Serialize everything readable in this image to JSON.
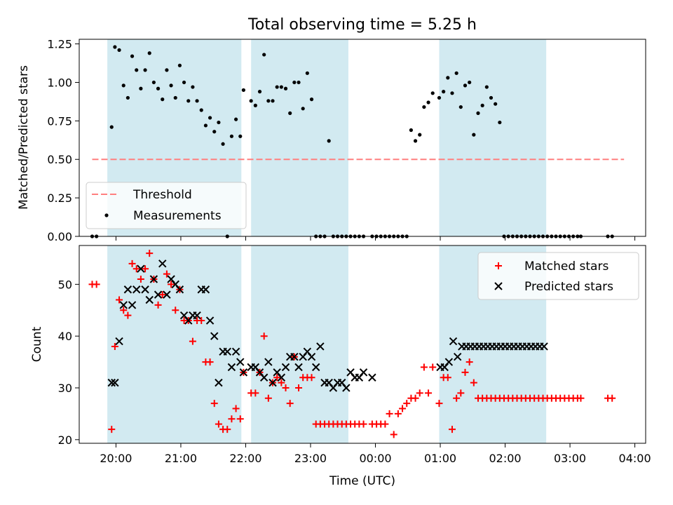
{
  "figure": {
    "title": "Total observing time = 5.25 h",
    "xlabel": "Time (UTC)",
    "xticks": [
      "20:00",
      "21:00",
      "22:00",
      "23:00",
      "00:00",
      "01:00",
      "02:00",
      "03:00",
      "04:00"
    ]
  },
  "colors": {
    "band": "#add8e6",
    "matched": "#ff0000",
    "predicted": "#000000",
    "threshold": "#ff7f7f"
  },
  "chart_data": [
    {
      "type": "scatter",
      "ylabel": "Matched/Predicted stars",
      "xlim": [
        "19:26",
        "04:10"
      ],
      "ylim": [
        0,
        1.28
      ],
      "yticks": [
        "0.00",
        "0.25",
        "0.50",
        "0.75",
        "1.00",
        "1.25"
      ],
      "grid": false,
      "legend_position": "lower-left",
      "observing_windows": [
        [
          "19:52",
          "21:56"
        ],
        [
          "22:05",
          "23:35"
        ],
        [
          "00:59",
          "02:38"
        ]
      ],
      "threshold": {
        "name": "Threshold",
        "value": 0.5,
        "x": [
          "19:38",
          "03:50"
        ]
      },
      "series": [
        {
          "name": "Measurements",
          "x": [
            "19:38",
            "19:42",
            "19:56",
            "19:59",
            "20:03",
            "20:07",
            "20:11",
            "20:15",
            "20:19",
            "20:23",
            "20:27",
            "20:31",
            "20:35",
            "20:39",
            "20:43",
            "20:47",
            "20:51",
            "20:55",
            "20:59",
            "21:03",
            "21:07",
            "21:11",
            "21:15",
            "21:19",
            "21:23",
            "21:27",
            "21:31",
            "21:35",
            "21:39",
            "21:43",
            "21:47",
            "21:51",
            "21:55",
            "21:58",
            "22:05",
            "22:09",
            "22:13",
            "22:17",
            "22:21",
            "22:25",
            "22:29",
            "22:33",
            "22:37",
            "22:41",
            "22:45",
            "22:49",
            "22:53",
            "22:57",
            "23:01",
            "23:05",
            "23:09",
            "23:13",
            "23:17",
            "23:21",
            "23:25",
            "23:29",
            "23:33",
            "23:37",
            "23:41",
            "23:45",
            "23:49",
            "23:57",
            "00:01",
            "00:05",
            "00:09",
            "00:13",
            "00:17",
            "00:21",
            "00:25",
            "00:29",
            "00:33",
            "00:37",
            "00:41",
            "00:45",
            "00:49",
            "00:53",
            "00:59",
            "01:03",
            "01:07",
            "01:11",
            "01:15",
            "01:19",
            "01:23",
            "01:27",
            "01:31",
            "01:35",
            "01:39",
            "01:43",
            "01:47",
            "01:51",
            "01:55",
            "01:59",
            "02:03",
            "02:07",
            "02:11",
            "02:15",
            "02:19",
            "02:23",
            "02:27",
            "02:31",
            "02:35",
            "02:39",
            "02:43",
            "02:47",
            "02:51",
            "02:55",
            "02:59",
            "03:03",
            "03:07",
            "03:10",
            "03:35",
            "03:39"
          ],
          "y": [
            0,
            0,
            0.71,
            1.23,
            1.21,
            0.98,
            0.9,
            1.17,
            1.08,
            0.96,
            1.08,
            1.19,
            1.0,
            0.96,
            0.89,
            1.08,
            0.98,
            0.9,
            1.11,
            1.0,
            0.88,
            0.97,
            0.88,
            0.82,
            0.72,
            0.77,
            0.68,
            0.74,
            0.6,
            0,
            0.65,
            0.76,
            0.65,
            0.95,
            0.88,
            0.85,
            0.94,
            1.18,
            0.88,
            0.88,
            0.97,
            0.97,
            0.96,
            0.8,
            1.0,
            1.0,
            0.83,
            1.06,
            0.89,
            0,
            0,
            0,
            0.62,
            0,
            0,
            0,
            0,
            0,
            0,
            0,
            0,
            0,
            0,
            0,
            0,
            0,
            0,
            0,
            0,
            0,
            0.69,
            0.62,
            0.66,
            0.84,
            0.87,
            0.93,
            0.9,
            0.94,
            1.03,
            0.93,
            1.06,
            0.84,
            0.98,
            1.0,
            0.66,
            0.8,
            0.85,
            0.97,
            0.9,
            0.86,
            0.74,
            0,
            0,
            0,
            0,
            0,
            0,
            0,
            0,
            0,
            0,
            0,
            0,
            0,
            0,
            0,
            0,
            0,
            0,
            0,
            0,
            0
          ]
        }
      ]
    },
    {
      "type": "scatter",
      "ylabel": "Count",
      "xlim": [
        "19:26",
        "04:10"
      ],
      "ylim": [
        19.3,
        57.5
      ],
      "yticks": [
        "20",
        "30",
        "40",
        "50"
      ],
      "grid": false,
      "legend_position": "top-right",
      "observing_windows": [
        [
          "19:52",
          "21:56"
        ],
        [
          "22:05",
          "23:35"
        ],
        [
          "00:59",
          "02:38"
        ]
      ],
      "series": [
        {
          "name": "Matched stars",
          "x": [
            "19:38",
            "19:42",
            "19:56",
            "19:59",
            "20:03",
            "20:07",
            "20:11",
            "20:15",
            "20:19",
            "20:23",
            "20:27",
            "20:31",
            "20:35",
            "20:39",
            "20:43",
            "20:47",
            "20:51",
            "20:55",
            "20:59",
            "21:03",
            "21:07",
            "21:11",
            "21:15",
            "21:19",
            "21:23",
            "21:27",
            "21:31",
            "21:35",
            "21:39",
            "21:43",
            "21:47",
            "21:51",
            "21:55",
            "21:58",
            "22:05",
            "22:09",
            "22:13",
            "22:17",
            "22:21",
            "22:25",
            "22:29",
            "22:33",
            "22:37",
            "22:41",
            "22:45",
            "22:49",
            "22:53",
            "22:57",
            "23:01",
            "23:05",
            "23:09",
            "23:13",
            "23:17",
            "23:21",
            "23:25",
            "23:29",
            "23:33",
            "23:37",
            "23:41",
            "23:45",
            "23:49",
            "23:57",
            "00:01",
            "00:05",
            "00:09",
            "00:13",
            "00:17",
            "00:21",
            "00:25",
            "00:29",
            "00:33",
            "00:37",
            "00:41",
            "00:45",
            "00:49",
            "00:53",
            "00:59",
            "01:03",
            "01:07",
            "01:11",
            "01:15",
            "01:19",
            "01:23",
            "01:27",
            "01:31",
            "01:35",
            "01:39",
            "01:43",
            "01:47",
            "01:51",
            "01:55",
            "01:59",
            "02:03",
            "02:07",
            "02:11",
            "02:15",
            "02:19",
            "02:23",
            "02:27",
            "02:31",
            "02:35",
            "02:39",
            "02:43",
            "02:47",
            "02:51",
            "02:55",
            "02:59",
            "03:03",
            "03:07",
            "03:10",
            "03:35",
            "03:39"
          ],
          "y": [
            50,
            50,
            22,
            38,
            47,
            45,
            44,
            54,
            53,
            51,
            53,
            56,
            51,
            46,
            48,
            52,
            50,
            45,
            49,
            43,
            43,
            39,
            43,
            43,
            35,
            35,
            27,
            23,
            22,
            22,
            24,
            26,
            24,
            33,
            29,
            29,
            33,
            40,
            28,
            31,
            32,
            31,
            30,
            27,
            36,
            30,
            32,
            32,
            32,
            23,
            23,
            23,
            23,
            23,
            23,
            23,
            23,
            23,
            23,
            23,
            23,
            23,
            23,
            23,
            23,
            25,
            21,
            25,
            26,
            27,
            28,
            28,
            29,
            34,
            29,
            34,
            27,
            32,
            32,
            22,
            28,
            29,
            33,
            35,
            31,
            28,
            28,
            28,
            28,
            28,
            28,
            28,
            28,
            28,
            28,
            28,
            28,
            28,
            28,
            28,
            28,
            28,
            28,
            28,
            28,
            28,
            28,
            28,
            28,
            28,
            28,
            28
          ]
        },
        {
          "name": "Predicted stars",
          "x": [
            "19:56",
            "19:59",
            "20:03",
            "20:07",
            "20:11",
            "20:15",
            "20:19",
            "20:23",
            "20:27",
            "20:31",
            "20:35",
            "20:39",
            "20:43",
            "20:47",
            "20:51",
            "20:55",
            "20:59",
            "21:03",
            "21:07",
            "21:11",
            "21:15",
            "21:19",
            "21:23",
            "21:27",
            "21:31",
            "21:35",
            "21:39",
            "21:43",
            "21:47",
            "21:51",
            "21:55",
            "21:58",
            "22:05",
            "22:09",
            "22:13",
            "22:17",
            "22:21",
            "22:25",
            "22:29",
            "22:33",
            "22:37",
            "22:41",
            "22:45",
            "22:49",
            "22:53",
            "22:57",
            "23:01",
            "23:05",
            "23:09",
            "23:13",
            "23:17",
            "23:21",
            "23:25",
            "23:29",
            "23:33",
            "23:37",
            "23:41",
            "23:45",
            "23:49",
            "23:57",
            "01:00",
            "01:04",
            "01:08",
            "01:12",
            "01:16",
            "01:20",
            "01:24",
            "01:28",
            "01:32",
            "01:36",
            "01:40",
            "01:44",
            "01:48",
            "01:52",
            "01:56",
            "02:00",
            "02:04",
            "02:08",
            "02:12",
            "02:16",
            "02:20",
            "02:24",
            "02:28",
            "02:32",
            "02:36"
          ],
          "y": [
            31,
            31,
            39,
            46,
            49,
            46,
            49,
            53,
            49,
            47,
            51,
            48,
            54,
            48,
            51,
            50,
            49,
            44,
            43,
            44,
            44,
            49,
            49,
            43,
            40,
            31,
            37,
            37,
            34,
            37,
            35,
            33,
            34,
            34,
            33,
            32,
            35,
            31,
            33,
            32,
            34,
            36,
            36,
            34,
            36,
            37,
            36,
            34,
            38,
            31,
            31,
            30,
            31,
            31,
            30,
            33,
            32,
            32,
            33,
            32,
            34,
            34,
            35,
            39,
            36,
            38,
            38,
            38,
            38,
            38,
            38,
            38,
            38,
            38,
            38,
            38,
            38,
            38,
            38,
            38,
            38,
            38,
            38,
            38,
            38
          ]
        }
      ]
    }
  ]
}
